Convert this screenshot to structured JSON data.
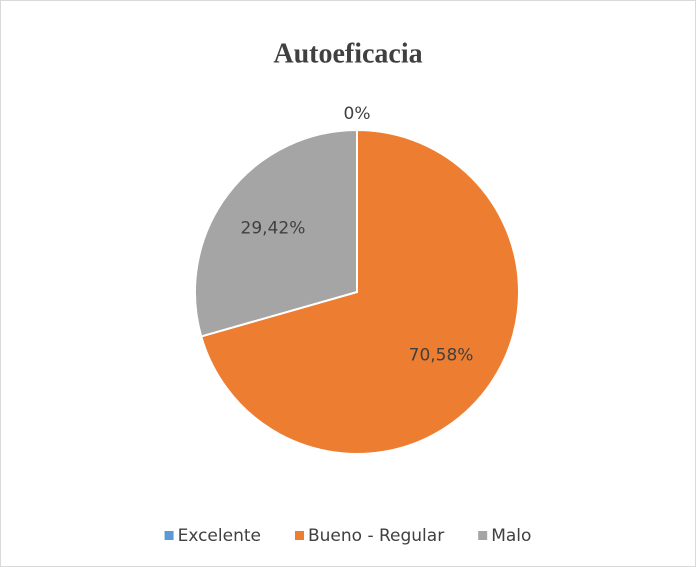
{
  "chart_data": {
    "type": "pie",
    "title": "Autoeficacia",
    "categories": [
      "Excelente",
      "Bueno - Regular",
      "Malo"
    ],
    "values": [
      0,
      70.58,
      29.42
    ],
    "value_labels": [
      "0%",
      "70,58%",
      "29,42%"
    ],
    "colors": [
      "#5b9bd5",
      "#ed7d31",
      "#a5a5a5"
    ],
    "legend": "bottom"
  }
}
